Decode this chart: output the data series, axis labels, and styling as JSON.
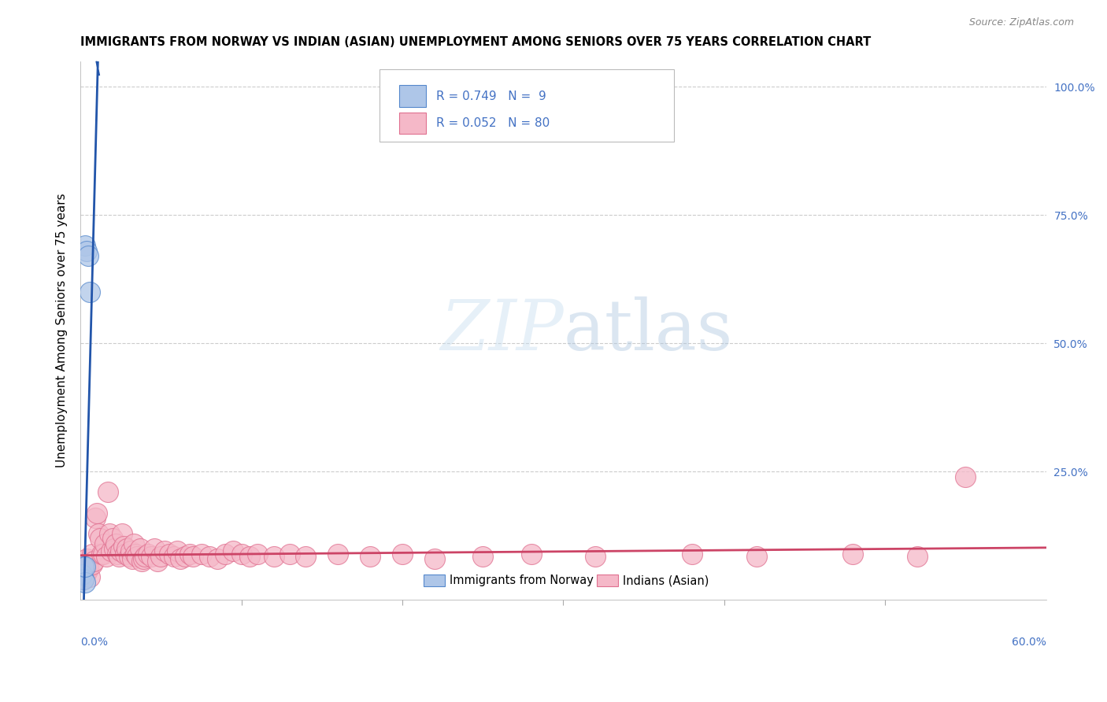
{
  "title": "IMMIGRANTS FROM NORWAY VS INDIAN (ASIAN) UNEMPLOYMENT AMONG SENIORS OVER 75 YEARS CORRELATION CHART",
  "source": "Source: ZipAtlas.com",
  "ylabel": "Unemployment Among Seniors over 75 years",
  "norway_R": 0.749,
  "norway_N": 9,
  "indian_R": 0.052,
  "indian_N": 80,
  "norway_color": "#aec6e8",
  "norway_edge_color": "#5588cc",
  "norway_line_color": "#2255aa",
  "indian_color": "#f5b8c8",
  "indian_edge_color": "#e07090",
  "indian_line_color": "#cc4466",
  "watermark_color": "#d8eaf8",
  "grid_color": "#cccccc",
  "right_tick_color": "#4472c4",
  "source_color": "#888888",
  "norway_scatter_x": [
    0.001,
    0.002,
    0.002,
    0.003,
    0.003,
    0.003,
    0.004,
    0.005,
    0.006
  ],
  "norway_scatter_y": [
    0.05,
    0.04,
    0.065,
    0.035,
    0.065,
    0.69,
    0.68,
    0.67,
    0.6
  ],
  "indian_scatter_x": [
    0.001,
    0.002,
    0.002,
    0.003,
    0.003,
    0.004,
    0.004,
    0.005,
    0.005,
    0.006,
    0.007,
    0.007,
    0.008,
    0.009,
    0.01,
    0.011,
    0.012,
    0.013,
    0.014,
    0.015,
    0.016,
    0.017,
    0.018,
    0.019,
    0.02,
    0.021,
    0.022,
    0.023,
    0.024,
    0.025,
    0.026,
    0.027,
    0.028,
    0.029,
    0.03,
    0.031,
    0.032,
    0.033,
    0.034,
    0.035,
    0.037,
    0.038,
    0.039,
    0.04,
    0.042,
    0.044,
    0.046,
    0.048,
    0.05,
    0.052,
    0.055,
    0.058,
    0.06,
    0.062,
    0.065,
    0.068,
    0.07,
    0.075,
    0.08,
    0.085,
    0.09,
    0.095,
    0.1,
    0.105,
    0.11,
    0.12,
    0.13,
    0.14,
    0.16,
    0.18,
    0.2,
    0.22,
    0.25,
    0.28,
    0.32,
    0.38,
    0.42,
    0.48,
    0.52,
    0.55
  ],
  "indian_scatter_y": [
    0.05,
    0.04,
    0.06,
    0.05,
    0.07,
    0.055,
    0.08,
    0.06,
    0.065,
    0.045,
    0.09,
    0.07,
    0.075,
    0.16,
    0.17,
    0.13,
    0.12,
    0.09,
    0.09,
    0.11,
    0.085,
    0.21,
    0.13,
    0.095,
    0.12,
    0.1,
    0.11,
    0.09,
    0.085,
    0.095,
    0.13,
    0.105,
    0.09,
    0.1,
    0.085,
    0.095,
    0.08,
    0.11,
    0.09,
    0.085,
    0.1,
    0.075,
    0.08,
    0.085,
    0.09,
    0.085,
    0.1,
    0.075,
    0.085,
    0.095,
    0.09,
    0.085,
    0.095,
    0.08,
    0.085,
    0.09,
    0.085,
    0.09,
    0.085,
    0.08,
    0.09,
    0.095,
    0.09,
    0.085,
    0.09,
    0.085,
    0.09,
    0.085,
    0.09,
    0.085,
    0.09,
    0.08,
    0.085,
    0.09,
    0.085,
    0.09,
    0.085,
    0.09,
    0.085,
    0.24
  ],
  "xlim": [
    0.0,
    0.6
  ],
  "ylim": [
    0.0,
    1.05
  ],
  "norway_slope": 120.0,
  "norway_intercept": -0.25,
  "indian_slope": 0.025,
  "indian_intercept": 0.087
}
